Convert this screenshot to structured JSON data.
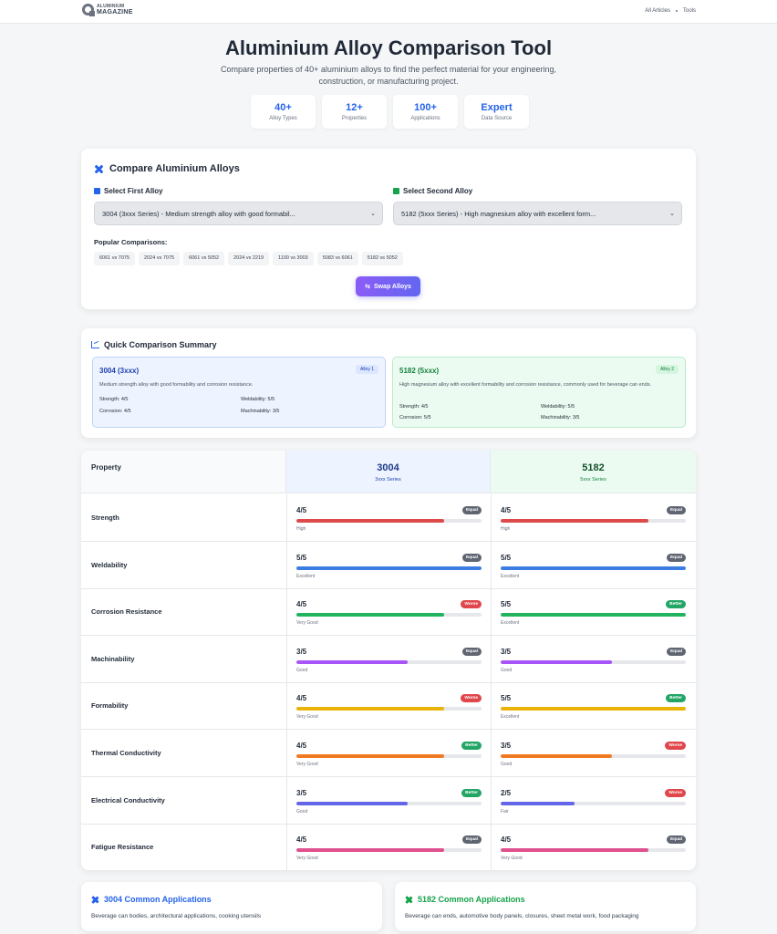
{
  "brand": {
    "line1": "ALUMINIUM",
    "line2": "MAGAZINE",
    "line3": ""
  },
  "nav": {
    "items": [
      "All Articles",
      "Tools"
    ]
  },
  "hero": {
    "title": "Aluminium Alloy Comparison Tool",
    "subtitle": "Compare properties of 40+ aluminium alloys to find the perfect material for your engineering, construction, or manufacturing project."
  },
  "stats": [
    {
      "value": "40+",
      "label": "Alloy Types"
    },
    {
      "value": "12+",
      "label": "Properties"
    },
    {
      "value": "100+",
      "label": "Applications"
    },
    {
      "value": "Expert",
      "label": "Data Source"
    }
  ],
  "compare": {
    "title": "Compare Aluminium Alloys",
    "first_label": "Select First Alloy",
    "second_label": "Select Second Alloy",
    "first_value": "3004 (3xxx Series) - Medium strength alloy with good formabil...",
    "second_value": "5182 (5xxx Series) - High magnesium alloy with excellent form...",
    "popular_label": "Popular Comparisons:",
    "popular": [
      "6061 vs 7075",
      "2024 vs 7075",
      "6061 vs 5052",
      "2024 vs 2219",
      "1100 vs 3003",
      "5083 vs 6061",
      "5182 vs 5052"
    ],
    "swap_label": "Swap Alloys"
  },
  "summary": {
    "title": "Quick Comparison Summary",
    "alloys": [
      {
        "name": "3004 (3xxx)",
        "tag": "Alloy 1",
        "desc": "Medium strength alloy with good formability and corrosion resistance.",
        "props": [
          "Strength:  4/5",
          "Weldability:  5/5",
          "Corrosion:  4/5",
          "Machinability:  3/5"
        ]
      },
      {
        "name": "5182 (5xxx)",
        "tag": "Alloy 2",
        "desc": "High magnesium alloy with excellent formability and corrosion resistance, commonly used for beverage can ends.",
        "props": [
          "Strength:  4/5",
          "Weldability:  5/5",
          "Corrosion:  5/5",
          "Machinability:  3/5"
        ]
      }
    ]
  },
  "table": {
    "property_header": "Property",
    "alloy_a": {
      "name": "3004",
      "series": "3xxx Series"
    },
    "alloy_b": {
      "name": "5182",
      "series": "5xxx Series"
    },
    "rows": [
      {
        "name": "Strength",
        "color": "#dc4a4a",
        "a": {
          "score": "4/5",
          "value": 0.8,
          "badge": "Equal",
          "rating": "High"
        },
        "b": {
          "score": "4/5",
          "value": 0.8,
          "badge": "Equal",
          "rating": "High"
        }
      },
      {
        "name": "Weldability",
        "color": "#3b7de0",
        "a": {
          "score": "5/5",
          "value": 1.0,
          "badge": "Equal",
          "rating": "Excellent"
        },
        "b": {
          "score": "5/5",
          "value": 1.0,
          "badge": "Equal",
          "rating": "Excellent"
        }
      },
      {
        "name": "Corrosion Resistance",
        "color": "#22b35e",
        "a": {
          "score": "4/5",
          "value": 0.8,
          "badge": "Worse",
          "rating": "Very Good"
        },
        "b": {
          "score": "5/5",
          "value": 1.0,
          "badge": "Better",
          "rating": "Excellent"
        }
      },
      {
        "name": "Machinability",
        "color": "#a855f7",
        "a": {
          "score": "3/5",
          "value": 0.6,
          "badge": "Equal",
          "rating": "Good"
        },
        "b": {
          "score": "3/5",
          "value": 0.6,
          "badge": "Equal",
          "rating": "Good"
        }
      },
      {
        "name": "Formability",
        "color": "#eab308",
        "a": {
          "score": "4/5",
          "value": 0.8,
          "badge": "Worse",
          "rating": "Very Good"
        },
        "b": {
          "score": "5/5",
          "value": 1.0,
          "badge": "Better",
          "rating": "Excellent"
        }
      },
      {
        "name": "Thermal Conductivity",
        "color": "#f07a22",
        "a": {
          "score": "4/5",
          "value": 0.8,
          "badge": "Better",
          "rating": "Very Good"
        },
        "b": {
          "score": "3/5",
          "value": 0.6,
          "badge": "Worse",
          "rating": "Good"
        }
      },
      {
        "name": "Electrical Conductivity",
        "color": "#6366e8",
        "a": {
          "score": "3/5",
          "value": 0.6,
          "badge": "Better",
          "rating": "Good"
        },
        "b": {
          "score": "2/5",
          "value": 0.4,
          "badge": "Worse",
          "rating": "Fair"
        }
      },
      {
        "name": "Fatigue Resistance",
        "color": "#e0508f",
        "a": {
          "score": "4/5",
          "value": 0.8,
          "badge": "Equal",
          "rating": "Very Good"
        },
        "b": {
          "score": "4/5",
          "value": 0.8,
          "badge": "Equal",
          "rating": "Very Good"
        }
      }
    ]
  },
  "badge_colors": {
    "Equal": "#5f6672",
    "Worse": "#e0474c",
    "Better": "#22a565"
  },
  "applications": [
    {
      "title": "3004 Common Applications",
      "text": "Beverage can bodies, architectural applications, cooking utensils"
    },
    {
      "title": "5182 Common Applications",
      "text": "Beverage can ends, automotive body panels, closures, sheet metal work, food packaging"
    }
  ]
}
